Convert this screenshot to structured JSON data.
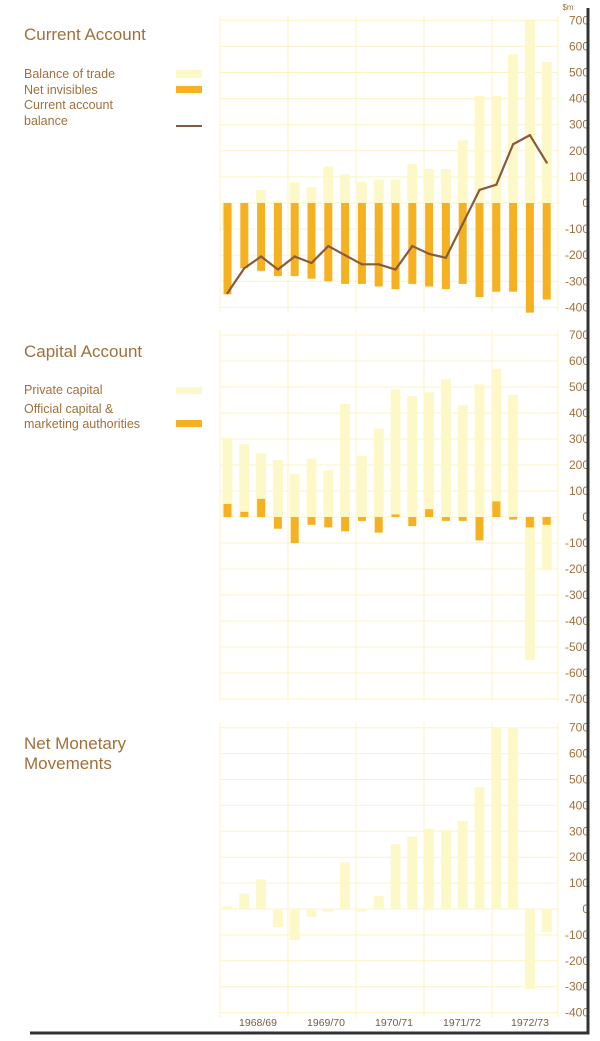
{
  "colors": {
    "light_bar": "#fdf8c8",
    "dark_bar": "#f5b120",
    "line": "#8a5a3a",
    "grid": "#fbf3c4",
    "text": "#a0703a",
    "frame": "#333333"
  },
  "unit_label": "$m",
  "x_tick_labels": [
    "1968/69",
    "1969/70",
    "1970/71",
    "1971/72",
    "1972/73"
  ],
  "chart_data": [
    {
      "type": "bar",
      "title": "Current Account",
      "yticks": [
        -400,
        -300,
        -200,
        -100,
        0,
        100,
        200,
        300,
        400,
        500,
        600,
        700
      ],
      "ylim": [
        -420,
        720
      ],
      "grid": true,
      "legend": [
        {
          "label": "Balance of trade",
          "style": "light-bar"
        },
        {
          "label": "Net invisibles",
          "style": "dark-bar"
        },
        {
          "label": "Current account",
          "style": "line"
        },
        {
          "label": "balance",
          "style": "none"
        }
      ],
      "series": [
        {
          "name": "Balance of trade",
          "type": "bar",
          "values": [
            -100,
            0,
            50,
            10,
            80,
            60,
            140,
            110,
            80,
            90,
            90,
            150,
            130,
            130,
            240,
            410,
            410,
            570,
            700,
            540
          ]
        },
        {
          "name": "Net invisibles",
          "type": "bar",
          "values": [
            -350,
            -250,
            -260,
            -280,
            -280,
            -290,
            -300,
            -310,
            -310,
            -320,
            -330,
            -310,
            -320,
            -330,
            -310,
            -360,
            -340,
            -340,
            -420,
            -370
          ]
        },
        {
          "name": "Current account balance",
          "type": "line",
          "values": [
            -345,
            -250,
            -205,
            -255,
            -205,
            -230,
            -165,
            -200,
            -235,
            -235,
            -255,
            -165,
            -195,
            -210,
            -80,
            50,
            70,
            225,
            260,
            155
          ]
        }
      ]
    },
    {
      "type": "bar",
      "title": "Capital Account",
      "yticks": [
        -700,
        -600,
        -500,
        -400,
        -300,
        -200,
        -100,
        0,
        100,
        200,
        300,
        400,
        500,
        600,
        700
      ],
      "ylim": [
        -710,
        720
      ],
      "grid": true,
      "legend": [
        {
          "label": "Private capital",
          "style": "light-bar"
        },
        {
          "label": "Official capital &",
          "style": "none"
        },
        {
          "label": "marketing authorities",
          "style": "dark-bar"
        }
      ],
      "series": [
        {
          "name": "Private capital",
          "type": "bar",
          "values": [
            305,
            280,
            245,
            220,
            165,
            225,
            180,
            435,
            235,
            340,
            490,
            465,
            480,
            530,
            430,
            510,
            570,
            470,
            -550,
            -205
          ]
        },
        {
          "name": "Official capital & marketing authorities",
          "type": "bar",
          "values": [
            50,
            20,
            70,
            -45,
            -100,
            -30,
            -40,
            -55,
            -15,
            -60,
            10,
            -35,
            30,
            -15,
            -15,
            -90,
            60,
            -10,
            -40,
            -30
          ]
        }
      ]
    },
    {
      "type": "bar",
      "title": "Net Monetary Movements",
      "yticks": [
        -400,
        -300,
        -200,
        -100,
        0,
        100,
        200,
        300,
        400,
        500,
        600,
        700
      ],
      "ylim": [
        -420,
        720
      ],
      "grid": true,
      "legend": [],
      "series": [
        {
          "name": "Net monetary movements",
          "type": "bar",
          "values": [
            10,
            60,
            115,
            -70,
            -120,
            -30,
            -10,
            180,
            -10,
            50,
            250,
            280,
            310,
            305,
            340,
            470,
            700,
            700,
            -310,
            -90
          ]
        }
      ]
    }
  ]
}
